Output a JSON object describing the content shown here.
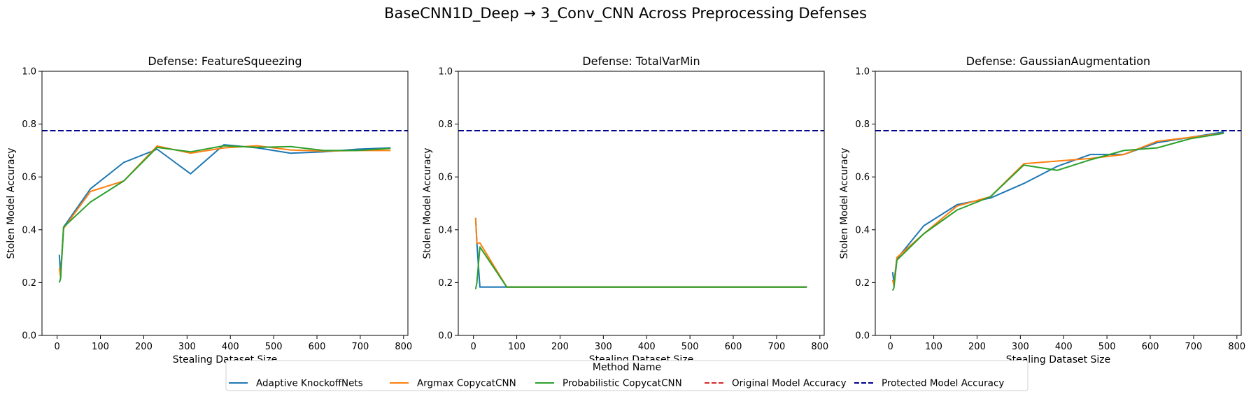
{
  "figure_title": "BaseCNN1D_Deep → 3_Conv_CNN Across Preprocessing Defenses",
  "legend": {
    "title": "Method Name",
    "placement": "bottom-center",
    "entries": [
      {
        "label": "Adaptive KnockoffNets",
        "color": "#1f77b4",
        "style": "solid"
      },
      {
        "label": "Argmax CopycatCNN",
        "color": "#ff7f0e",
        "style": "solid"
      },
      {
        "label": "Probabilistic CopycatCNN",
        "color": "#2ca02c",
        "style": "solid"
      },
      {
        "label": "Original Model Accuracy",
        "color": "#d62728",
        "style": "dashed"
      },
      {
        "label": "Protected Model Accuracy",
        "color": "#00008b",
        "style": "dashed"
      }
    ]
  },
  "chart_data": [
    {
      "type": "line",
      "title": "Defense: FeatureSqueezing",
      "xlabel": "Stealing Dataset Size",
      "ylabel": "Stolen Model Accuracy",
      "xlim": [
        -35,
        810
      ],
      "ylim": [
        0,
        1
      ],
      "xticks": [
        "0",
        "100",
        "200",
        "300",
        "400",
        "500",
        "600",
        "700",
        "800"
      ],
      "yticks": [
        "0.0",
        "0.2",
        "0.4",
        "0.6",
        "0.8",
        "1.0"
      ],
      "grid": false,
      "protected_accuracy": 0.775,
      "series": [
        {
          "name": "Adaptive KnockoffNets",
          "x": [
            5,
            8,
            15,
            77,
            154,
            231,
            308,
            385,
            462,
            539,
            616,
            693,
            770
          ],
          "y": [
            0.305,
            0.23,
            0.41,
            0.555,
            0.655,
            0.705,
            0.612,
            0.722,
            0.71,
            0.69,
            0.695,
            0.705,
            0.71
          ]
        },
        {
          "name": "Argmax CopycatCNN",
          "x": [
            5,
            8,
            15,
            77,
            154,
            231,
            308,
            385,
            462,
            539,
            616,
            693,
            770
          ],
          "y": [
            0.255,
            0.22,
            0.405,
            0.545,
            0.585,
            0.717,
            0.69,
            0.71,
            0.718,
            0.702,
            0.698,
            0.7,
            0.7
          ]
        },
        {
          "name": "Probabilistic CopycatCNN",
          "x": [
            5,
            8,
            15,
            77,
            154,
            231,
            308,
            385,
            462,
            539,
            616,
            693,
            770
          ],
          "y": [
            0.2,
            0.215,
            0.41,
            0.505,
            0.585,
            0.712,
            0.695,
            0.718,
            0.712,
            0.715,
            0.7,
            0.7,
            0.708
          ]
        }
      ]
    },
    {
      "type": "line",
      "title": "Defense: TotalVarMin",
      "xlabel": "Stealing Dataset Size",
      "ylabel": "Stolen Model Accuracy",
      "xlim": [
        -35,
        810
      ],
      "ylim": [
        0,
        1
      ],
      "xticks": [
        "0",
        "100",
        "200",
        "300",
        "400",
        "500",
        "600",
        "700",
        "800"
      ],
      "yticks": [
        "0.0",
        "0.2",
        "0.4",
        "0.6",
        "0.8",
        "1.0"
      ],
      "grid": false,
      "protected_accuracy": 0.775,
      "series": [
        {
          "name": "Adaptive KnockoffNets",
          "x": [
            5,
            8,
            15,
            77,
            154,
            231,
            308,
            385,
            462,
            539,
            616,
            693,
            770
          ],
          "y": [
            0.445,
            0.35,
            0.183,
            0.183,
            0.183,
            0.183,
            0.183,
            0.183,
            0.183,
            0.183,
            0.183,
            0.183,
            0.183
          ]
        },
        {
          "name": "Argmax CopycatCNN",
          "x": [
            5,
            8,
            15,
            77,
            154,
            231,
            308,
            385,
            462,
            539,
            616,
            693,
            770
          ],
          "y": [
            0.445,
            0.35,
            0.35,
            0.183,
            0.183,
            0.183,
            0.183,
            0.183,
            0.183,
            0.183,
            0.183,
            0.183,
            0.183
          ]
        },
        {
          "name": "Probabilistic CopycatCNN",
          "x": [
            5,
            8,
            15,
            77,
            154,
            231,
            308,
            385,
            462,
            539,
            616,
            693,
            770
          ],
          "y": [
            0.175,
            0.2,
            0.335,
            0.183,
            0.183,
            0.183,
            0.183,
            0.183,
            0.183,
            0.183,
            0.183,
            0.183,
            0.183
          ]
        }
      ]
    },
    {
      "type": "line",
      "title": "Defense: GaussianAugmentation",
      "xlabel": "Stealing Dataset Size",
      "ylabel": "Stolen Model Accuracy",
      "xlim": [
        -35,
        810
      ],
      "ylim": [
        0,
        1
      ],
      "xticks": [
        "0",
        "100",
        "200",
        "300",
        "400",
        "500",
        "600",
        "700",
        "800"
      ],
      "yticks": [
        "0.0",
        "0.2",
        "0.4",
        "0.6",
        "0.8",
        "1.0"
      ],
      "grid": false,
      "protected_accuracy": 0.775,
      "series": [
        {
          "name": "Adaptive KnockoffNets",
          "x": [
            5,
            8,
            15,
            77,
            154,
            231,
            308,
            385,
            462,
            539,
            616,
            693,
            770
          ],
          "y": [
            0.24,
            0.2,
            0.29,
            0.415,
            0.495,
            0.52,
            0.575,
            0.64,
            0.685,
            0.685,
            0.73,
            0.75,
            0.77
          ]
        },
        {
          "name": "Argmax CopycatCNN",
          "x": [
            5,
            8,
            15,
            77,
            154,
            231,
            308,
            385,
            462,
            539,
            616,
            693,
            770
          ],
          "y": [
            0.21,
            0.19,
            0.295,
            0.385,
            0.49,
            0.525,
            0.65,
            0.66,
            0.67,
            0.685,
            0.735,
            0.75,
            0.765
          ]
        },
        {
          "name": "Probabilistic CopycatCNN",
          "x": [
            5,
            8,
            15,
            77,
            154,
            231,
            308,
            385,
            462,
            539,
            616,
            693,
            770
          ],
          "y": [
            0.17,
            0.18,
            0.285,
            0.385,
            0.475,
            0.525,
            0.645,
            0.625,
            0.665,
            0.7,
            0.71,
            0.745,
            0.765
          ]
        }
      ]
    }
  ]
}
